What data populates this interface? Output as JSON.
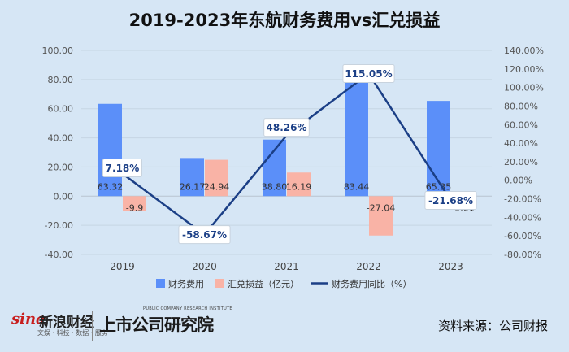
{
  "chart_data": {
    "type": "bar+line",
    "title": "2019-2023年东航财务费用vs汇兑损益",
    "categories": [
      "2019",
      "2020",
      "2021",
      "2022",
      "2023"
    ],
    "series": [
      {
        "name": "财务费用",
        "type": "bar",
        "axis": "left",
        "color": "#5b8ff9",
        "values": [
          63.32,
          26.17,
          38.8,
          83.44,
          65.35
        ],
        "labels": [
          "63.32",
          "26.17",
          "38.80",
          "83.44",
          "65.35"
        ]
      },
      {
        "name": "汇兑损益（亿元）",
        "type": "bar",
        "axis": "left",
        "color": "#f9b3a6",
        "values": [
          -9.9,
          24.94,
          16.19,
          -27.04,
          -9.01
        ],
        "labels": [
          "-9.9",
          "24.94",
          "16.19",
          "-27.04",
          "-9.01"
        ]
      },
      {
        "name": "财务费用同比（%）",
        "type": "line",
        "axis": "right",
        "color": "#1b3f86",
        "values": [
          7.18,
          -58.67,
          48.26,
          115.05,
          -21.68
        ],
        "labels": [
          "7.18%",
          "-58.67%",
          "48.26%",
          "115.05%",
          "-21.68%"
        ]
      }
    ],
    "left_axis": {
      "min": -40,
      "max": 100,
      "step": 20,
      "ticks": [
        "100.00",
        "80.00",
        "60.00",
        "40.00",
        "20.00",
        "0.00",
        "-20.00",
        "-40.00"
      ]
    },
    "right_axis": {
      "min": -80,
      "max": 140,
      "step": 20,
      "ticks": [
        "140.00%",
        "120.00%",
        "100.00%",
        "80.00%",
        "60.00%",
        "40.00%",
        "20.00%",
        "0.00%",
        "-20.00%",
        "-40.00%",
        "-60.00%",
        "-80.00%"
      ]
    },
    "legend_position": "bottom"
  },
  "footer": {
    "brand_en": "sina",
    "brand_cn": "新浪财经",
    "brand_sub": "文娱 · 科技 · 数据 · 服务",
    "institute_cn": "上市公司研究院",
    "institute_en": "PUBLIC COMPANY RESEARCH INSTITUTE",
    "source": "资料来源：公司财报"
  }
}
